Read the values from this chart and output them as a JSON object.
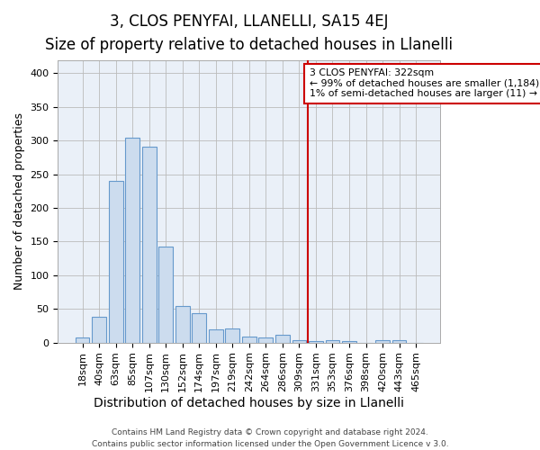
{
  "title": "3, CLOS PENYFAI, LLANELLI, SA15 4EJ",
  "subtitle": "Size of property relative to detached houses in Llanelli",
  "xlabel": "Distribution of detached houses by size in Llanelli",
  "ylabel": "Number of detached properties",
  "bar_labels": [
    "18sqm",
    "40sqm",
    "63sqm",
    "85sqm",
    "107sqm",
    "130sqm",
    "152sqm",
    "174sqm",
    "197sqm",
    "219sqm",
    "242sqm",
    "264sqm",
    "286sqm",
    "309sqm",
    "331sqm",
    "353sqm",
    "376sqm",
    "398sqm",
    "420sqm",
    "443sqm",
    "465sqm"
  ],
  "bar_values": [
    8,
    38,
    240,
    304,
    291,
    143,
    54,
    44,
    20,
    21,
    9,
    8,
    11,
    4,
    2,
    4,
    2,
    0,
    3,
    4,
    0
  ],
  "bar_color": "#ccdcee",
  "bar_edgecolor": "#6699cc",
  "background_color": "#eaf0f8",
  "vline_index": 13.5,
  "vline_color": "#cc0000",
  "annotation_line1": "3 CLOS PENYFAI: 322sqm",
  "annotation_line2": "← 99% of detached houses are smaller (1,184)",
  "annotation_line3": "1% of semi-detached houses are larger (11) →",
  "annotation_box_color": "#ffffff",
  "annotation_border_color": "#cc0000",
  "footer_line1": "Contains HM Land Registry data © Crown copyright and database right 2024.",
  "footer_line2": "Contains public sector information licensed under the Open Government Licence v 3.0.",
  "ylim": [
    0,
    420
  ],
  "title_fontsize": 12,
  "subtitle_fontsize": 10,
  "ylabel_fontsize": 9,
  "xlabel_fontsize": 10,
  "tick_fontsize": 8,
  "footer_fontsize": 6.5
}
